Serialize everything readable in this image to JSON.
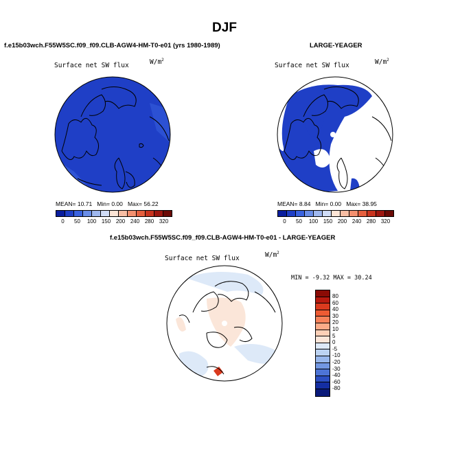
{
  "title": "DJF",
  "panel1": {
    "case": "f.e15b03wch.F55W5SC.f09_f09.CLB-AGW4-HM-T0-e01 (yrs 1980-1989)",
    "field": "Surface net SW flux",
    "units_base": "W/m",
    "units_exp": "2",
    "mean_label": "MEAN=",
    "mean_value": "10.71",
    "min_label": "Min=",
    "min_value": "0.00",
    "max_label": "Max=",
    "max_value": "56.22"
  },
  "panel2": {
    "case": "LARGE-YEAGER",
    "field": "Surface net SW flux",
    "units_base": "W/m",
    "units_exp": "2",
    "mean_label": "MEAN=",
    "mean_value": "8.84",
    "min_label": "Min=",
    "min_value": "0.00",
    "max_label": "Max=",
    "max_value": "38.95"
  },
  "panel3": {
    "case": "f.e15b03wch.F55W5SC.f09_f09.CLB-AGW4-HM-T0-e01 - LARGE-YEAGER",
    "field": "Surface net SW flux",
    "units_base": "W/m",
    "units_exp": "2",
    "minmax": "MIN = -9.32 MAX = 30.24"
  },
  "colorbar_abs": {
    "ticks": [
      "0",
      "50",
      "100",
      "150",
      "200",
      "240",
      "280",
      "320"
    ],
    "colors": [
      "#0a1e9e",
      "#1f3fc6",
      "#3a63e0",
      "#6a8ee8",
      "#9fb8ef",
      "#cfdcf6",
      "#fde5d6",
      "#f8bea4",
      "#f3906f",
      "#e5603f",
      "#c8341f",
      "#9d1710",
      "#6b0a06"
    ]
  },
  "colorbar_diff": {
    "labels": [
      "80",
      "60",
      "40",
      "30",
      "20",
      "10",
      "5",
      "0",
      "-5",
      "-10",
      "-20",
      "-30",
      "-40",
      "-60",
      "-80"
    ],
    "colors": [
      "#8b0b05",
      "#b81a0f",
      "#da3a1e",
      "#ee5b33",
      "#f7825a",
      "#fbab88",
      "#fdd0b7",
      "#fbe6d9",
      "#dde9f8",
      "#bcd3f2",
      "#98b7ec",
      "#7297e2",
      "#4d74d6",
      "#2c4fc2",
      "#142ea2",
      "#0a1a7a"
    ]
  },
  "map_colors": {
    "abs_ocean": "#1f3fc6",
    "abs_land_edge": "#3a63e0",
    "abs_white": "#ffffff",
    "diff_neutral": "#ffffff",
    "diff_pos": "#fbe6d9",
    "diff_neg": "#dde9f8",
    "diff_strong": "#da3a1e"
  }
}
